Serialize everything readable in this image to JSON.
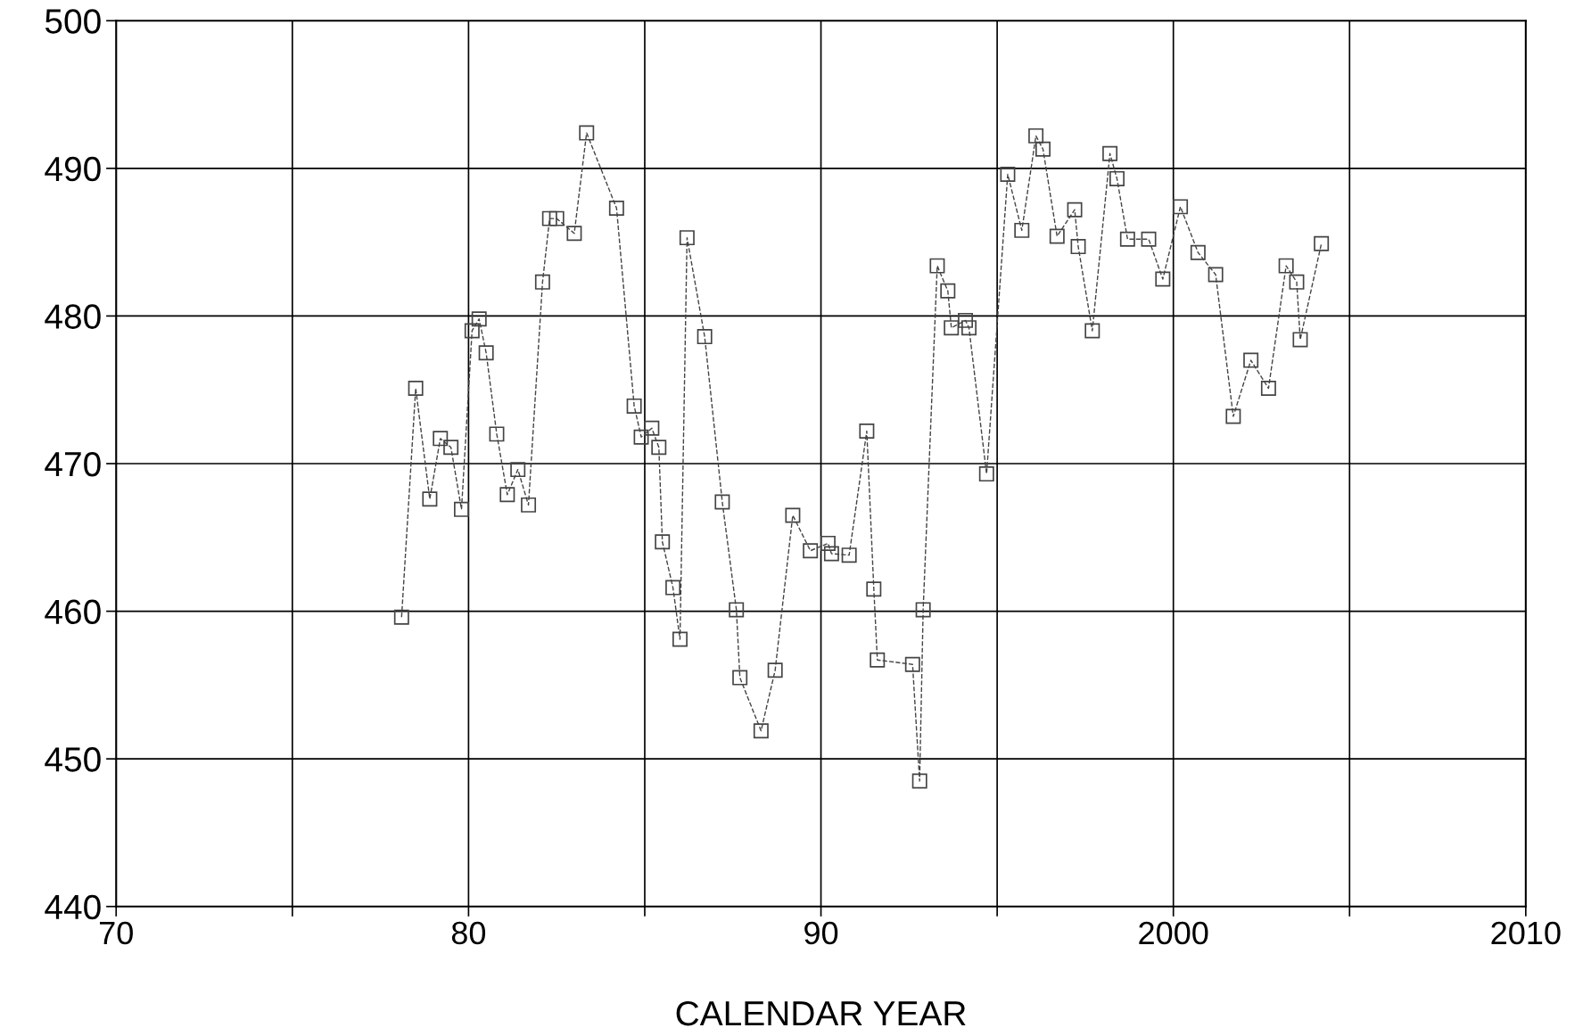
{
  "chart_data": {
    "type": "line",
    "xlabel": "CALENDAR YEAR",
    "x": [
      1978.1,
      1978.5,
      1978.9,
      1979.2,
      1979.5,
      1979.8,
      1980.1,
      1980.3,
      1980.5,
      1980.8,
      1981.1,
      1981.4,
      1981.7,
      1982.1,
      1982.3,
      1982.5,
      1983.0,
      1983.35,
      1984.2,
      1984.7,
      1984.9,
      1985.2,
      1985.4,
      1985.5,
      1985.8,
      1986.0,
      1986.2,
      1986.7,
      1987.2,
      1987.6,
      1987.7,
      1988.3,
      1988.7,
      1989.2,
      1989.7,
      1990.2,
      1990.3,
      1990.8,
      1991.3,
      1991.5,
      1991.6,
      1992.6,
      1992.8,
      1992.9,
      1993.3,
      1993.6,
      1993.7,
      1994.1,
      1994.2,
      1994.7,
      1995.3,
      1995.7,
      1996.1,
      1996.3,
      1996.7,
      1997.2,
      1997.3,
      1997.7,
      1998.2,
      1998.4,
      1998.7,
      1999.3,
      1999.7,
      2000.2,
      2000.7,
      2001.2,
      2001.7,
      2002.2,
      2002.7,
      2003.2,
      2003.5,
      2003.6,
      2004.2
    ],
    "series": [
      {
        "color": "#444444",
        "values": [
          459.6,
          475.1,
          467.6,
          471.7,
          471.1,
          466.9,
          479.0,
          479.8,
          477.5,
          472.0,
          467.9,
          469.6,
          467.2,
          482.3,
          486.6,
          486.6,
          485.6,
          492.4,
          487.3,
          473.9,
          471.8,
          472.4,
          471.1,
          464.7,
          461.6,
          458.1,
          485.3,
          478.6,
          467.4,
          460.1,
          455.5,
          451.9,
          456.0,
          466.5,
          464.1,
          464.6,
          463.9,
          463.8,
          472.2,
          461.5,
          456.7,
          456.4,
          448.5,
          460.1,
          483.4,
          481.7,
          479.2,
          479.7,
          479.2,
          469.3,
          489.6,
          485.8,
          492.2,
          491.3,
          485.4,
          487.2,
          484.7,
          479.0,
          491.0,
          489.3,
          485.2,
          485.2,
          482.5,
          487.4,
          484.3,
          482.8,
          473.2,
          477.0,
          475.1,
          483.4,
          482.3,
          478.4,
          484.9
        ]
      }
    ],
    "xlim": [
      1970,
      2010
    ],
    "xticks": [
      {
        "value": 1970,
        "label": "70"
      },
      {
        "value": 1975,
        "label": null
      },
      {
        "value": 1980,
        "label": "80"
      },
      {
        "value": 1985,
        "label": null
      },
      {
        "value": 1990,
        "label": "90"
      },
      {
        "value": 1995,
        "label": null
      },
      {
        "value": 2000,
        "label": "2000"
      },
      {
        "value": 2005,
        "label": null
      },
      {
        "value": 2010,
        "label": "2010"
      }
    ],
    "ylim": [
      440,
      500
    ],
    "yticks": [
      440,
      450,
      460,
      470,
      480,
      490,
      500
    ],
    "grid": true,
    "marker": "square",
    "line_style": "dashed",
    "legend": false
  }
}
